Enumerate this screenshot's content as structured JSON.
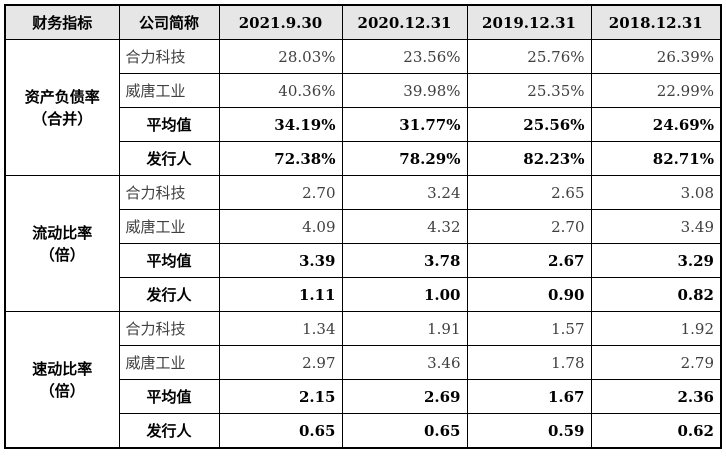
{
  "headers": [
    "财务指标",
    "公司简称",
    "2021.9.30",
    "2020.12.31",
    "2019.12.31",
    "2018.12.31"
  ],
  "groups": [
    {
      "metric_line1": "资产负债率",
      "metric_line2": "（合并）",
      "rows": [
        {
          "company": "合力科技",
          "values": [
            "28.03%",
            "23.56%",
            "25.76%",
            "26.39%"
          ],
          "bold": false
        },
        {
          "company": "威唐工业",
          "values": [
            "40.36%",
            "39.98%",
            "25.35%",
            "22.99%"
          ],
          "bold": false
        },
        {
          "company": "平均值",
          "values": [
            "34.19%",
            "31.77%",
            "25.56%",
            "24.69%"
          ],
          "bold": true
        },
        {
          "company": "发行人",
          "values": [
            "72.38%",
            "78.29%",
            "82.23%",
            "82.71%"
          ],
          "bold": true
        }
      ]
    },
    {
      "metric_line1": "流动比率",
      "metric_line2": "（倍）",
      "rows": [
        {
          "company": "合力科技",
          "values": [
            "2.70",
            "3.24",
            "2.65",
            "3.08"
          ],
          "bold": false
        },
        {
          "company": "威唐工业",
          "values": [
            "4.09",
            "4.32",
            "2.70",
            "3.49"
          ],
          "bold": false
        },
        {
          "company": "平均值",
          "values": [
            "3.39",
            "3.78",
            "2.67",
            "3.29"
          ],
          "bold": true
        },
        {
          "company": "发行人",
          "values": [
            "1.11",
            "1.00",
            "0.90",
            "0.82"
          ],
          "bold": true
        }
      ]
    },
    {
      "metric_line1": "速动比率",
      "metric_line2": "（倍）",
      "rows": [
        {
          "company": "合力科技",
          "values": [
            "1.34",
            "1.91",
            "1.57",
            "1.92"
          ],
          "bold": false
        },
        {
          "company": "威唐工业",
          "values": [
            "2.97",
            "3.46",
            "1.78",
            "2.79"
          ],
          "bold": false
        },
        {
          "company": "平均值",
          "values": [
            "2.15",
            "2.69",
            "1.67",
            "2.36"
          ],
          "bold": true
        },
        {
          "company": "发行人",
          "values": [
            "0.65",
            "0.65",
            "0.59",
            "0.62"
          ],
          "bold": true
        }
      ]
    }
  ]
}
